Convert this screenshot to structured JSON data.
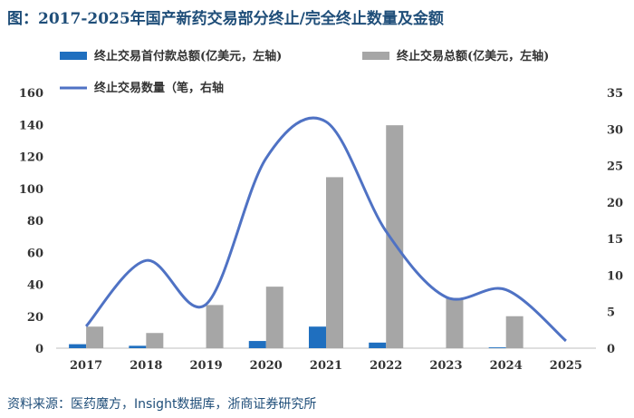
{
  "title": "图：2017-2025年国产新药交易部分终止/完全终止数量及金额",
  "source": "资料来源：医药魔方，Insight数据库，浙商证券研究所",
  "chart_data": {
    "type": "bar",
    "categories": [
      "2017",
      "2018",
      "2019",
      "2020",
      "2021",
      "2022",
      "2023",
      "2024",
      "2025"
    ],
    "series": [
      {
        "name": "终止交易首付款总额(亿美元，左轴)",
        "type": "bar",
        "axis": "left",
        "color": "#1f6fbf",
        "values": [
          2.5,
          1.5,
          0,
          4.5,
          13.5,
          3.5,
          0,
          0.5,
          0
        ]
      },
      {
        "name": "终止交易总额(亿美元，左轴)",
        "type": "bar",
        "axis": "left",
        "color": "#a6a6a6",
        "values": [
          13.5,
          9.5,
          27,
          38.5,
          107,
          139.5,
          31.5,
          20,
          0
        ]
      },
      {
        "name": "终止交易数量（笔，右轴",
        "type": "line",
        "axis": "right",
        "color": "#4f72c4",
        "values": [
          3,
          12,
          6,
          26,
          31,
          16,
          7,
          8,
          1
        ]
      }
    ],
    "ylim_left": [
      0,
      160
    ],
    "yticks_left": [
      0,
      20,
      40,
      60,
      80,
      100,
      120,
      140,
      160
    ],
    "ylim_right": [
      0,
      35
    ],
    "yticks_right": [
      0,
      5,
      10,
      15,
      20,
      25,
      30,
      35
    ],
    "grid": false,
    "legend": "top"
  }
}
